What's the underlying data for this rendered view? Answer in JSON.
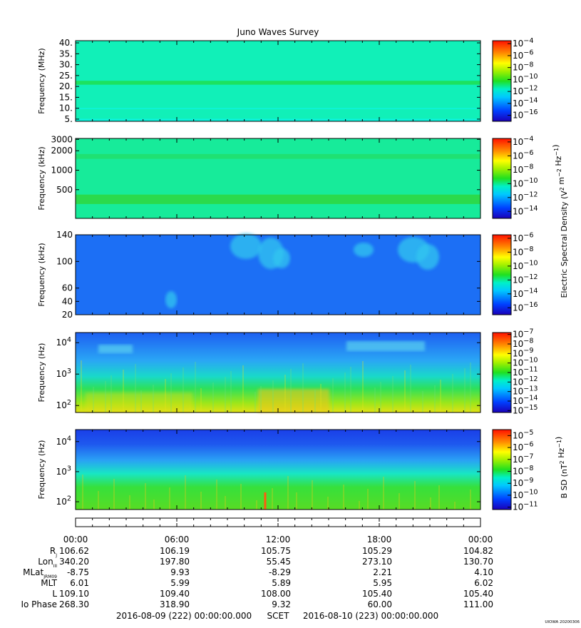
{
  "title": "Juno Waves Survey",
  "footer_left": "2016-08-09 (222) 00:00:00.000",
  "footer_mid": "SCET",
  "footer_right": "2016-08-10 (223) 00:00:00.000",
  "credit": "UIOWA 20200306",
  "panels": [
    {
      "id": "hfr-high",
      "ylabel": "Frequency (MHz)",
      "yscale": "linear",
      "yrange": [
        4,
        41
      ],
      "yticks": [
        {
          "v": 40,
          "label": "40."
        },
        {
          "v": 35,
          "label": "35."
        },
        {
          "v": 30,
          "label": "30."
        },
        {
          "v": 25,
          "label": "25."
        },
        {
          "v": 20,
          "label": "20."
        },
        {
          "v": 15,
          "label": "15."
        },
        {
          "v": 10,
          "label": "10."
        },
        {
          "v": 5,
          "label": "5."
        }
      ],
      "background": "#11f0b8",
      "bands": [
        {
          "y0": 20.8,
          "y1": 22.6,
          "color": "#1ee05a"
        },
        {
          "y0": 9.6,
          "y1": 10.1,
          "color": "#0ef2dc"
        },
        {
          "y0": 4.0,
          "y1": 5.2,
          "color": "#0ef2dc"
        }
      ],
      "colorbar": {
        "exponents": [
          -4,
          -6,
          -8,
          -10,
          -12,
          -14,
          -16
        ],
        "vmin": -17,
        "vmax": -3.5
      }
    },
    {
      "id": "hfr-low",
      "ylabel": "Frequency (kHz)",
      "yscale": "log",
      "yrange": [
        180,
        3100
      ],
      "yticks": [
        {
          "v": 3000,
          "label": "3000"
        },
        {
          "v": 2000,
          "label": "2000"
        },
        {
          "v": 1000,
          "label": "1000"
        },
        {
          "v": 500,
          "label": "500"
        }
      ],
      "background": "#17eb9a",
      "bands": [
        {
          "y0": 1500,
          "y1": 1780,
          "color": "#20e070"
        },
        {
          "y0": 300,
          "y1": 420,
          "color": "#2cd948"
        }
      ],
      "colorbar": {
        "exponents": [
          -4,
          -6,
          -8,
          -10,
          -12,
          -14
        ],
        "vmin": -15,
        "vmax": -3.5
      }
    },
    {
      "id": "lfr-high",
      "ylabel": "Frequency (kHz)",
      "yscale": "linear",
      "yrange": [
        20,
        140
      ],
      "yticks": [
        {
          "v": 140,
          "label": "140"
        },
        {
          "v": 100,
          "label": "100"
        },
        {
          "v": 60,
          "label": "60"
        },
        {
          "v": 40,
          "label": "40"
        },
        {
          "v": 20,
          "label": "20"
        }
      ],
      "background": "#1c6ff5",
      "bands": [],
      "colorbar": {
        "exponents": [
          -6,
          -8,
          -10,
          -12,
          -14,
          -16
        ],
        "vmin": -17,
        "vmax": -5.5
      }
    },
    {
      "id": "lfr-low-e",
      "ylabel": "Frequency (Hz)",
      "yscale": "log",
      "yrange": [
        60,
        21000
      ],
      "yticks": [
        {
          "v": 10000,
          "label": "10^4"
        },
        {
          "v": 1000,
          "label": "10^3"
        },
        {
          "v": 100,
          "label": "10^2"
        }
      ],
      "background": "#2a8cf0",
      "bands": [],
      "colorbar": {
        "exponents": [
          -7,
          -8,
          -9,
          -10,
          -11,
          -12,
          -13,
          -14,
          -15
        ],
        "vmin": -15.2,
        "vmax": -6.8
      }
    },
    {
      "id": "lfr-low-b",
      "ylabel": "Frequency (Hz)",
      "yscale": "log",
      "yrange": [
        55,
        25000
      ],
      "yticks": [
        {
          "v": 10000,
          "label": "10^4"
        },
        {
          "v": 1000,
          "label": "10^3"
        },
        {
          "v": 100,
          "label": "10^2"
        }
      ],
      "background": "#2a8cf0",
      "bands": [],
      "colorbar": {
        "exponents": [
          -5,
          -6,
          -7,
          -8,
          -9,
          -10,
          -11
        ],
        "vmin": -11.2,
        "vmax": -4.5
      }
    }
  ],
  "right_labels": {
    "electric": "Electric Spectral Density (V^2 m^-2 Hz^-1)",
    "magnetic": "B SD (nT^2 Hz^-1)"
  },
  "time_axis": {
    "ticks": [
      "00:00",
      "06:00",
      "12:00",
      "18:00",
      "00:00"
    ],
    "hours": [
      0,
      6,
      12,
      18,
      24
    ]
  },
  "ephemeris": [
    {
      "label": "RJ",
      "label_main": "R",
      "label_sub": "J",
      "values": [
        "106.62",
        "106.19",
        "105.75",
        "105.29",
        "104.82"
      ]
    },
    {
      "label": "LonIII",
      "label_main": "Lon",
      "label_sub": "III",
      "values": [
        "340.20",
        "197.80",
        "55.45",
        "273.10",
        "130.70"
      ]
    },
    {
      "label": "MLatJRM09",
      "label_main": "MLat",
      "label_sub": "JRM09",
      "values": [
        "-8.75",
        "9.93",
        "-8.29",
        "2.21",
        "4.10"
      ]
    },
    {
      "label": "MLT",
      "label_main": "MLT",
      "label_sub": "",
      "values": [
        "6.01",
        "5.99",
        "5.89",
        "5.95",
        "6.02"
      ]
    },
    {
      "label": "L",
      "label_main": "L",
      "label_sub": "",
      "values": [
        "109.10",
        "109.40",
        "108.00",
        "105.40",
        "105.40"
      ]
    },
    {
      "label": "Io Phase",
      "label_main": "Io Phase",
      "label_sub": "",
      "values": [
        "268.30",
        "318.90",
        "9.32",
        "60.00",
        "111.00"
      ]
    }
  ]
}
